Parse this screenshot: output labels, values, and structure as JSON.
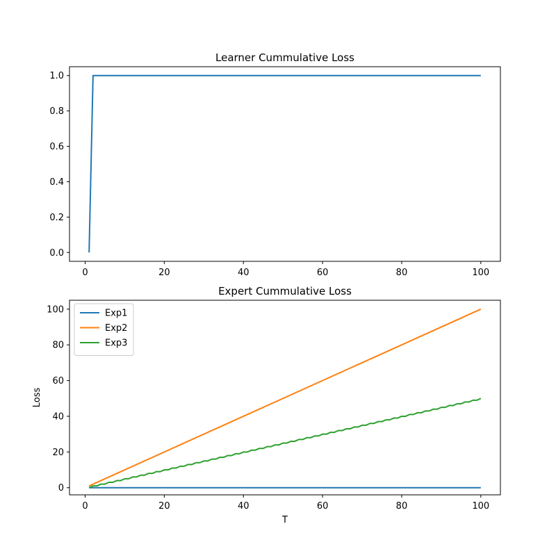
{
  "chart_data": [
    {
      "type": "line",
      "title": "Learner Cummulative Loss",
      "xlabel": "",
      "ylabel": "",
      "xlim": [
        -3.95,
        104.95
      ],
      "ylim": [
        -0.05,
        1.05
      ],
      "xticks": [
        0,
        20,
        40,
        60,
        80,
        100
      ],
      "yticks": [
        0.0,
        0.2,
        0.4,
        0.6,
        0.8,
        1.0
      ],
      "xtick_labels": [
        "0",
        "20",
        "40",
        "60",
        "80",
        "100"
      ],
      "ytick_labels": [
        "0.0",
        "0.2",
        "0.4",
        "0.6",
        "0.8",
        "1.0"
      ],
      "grid": false,
      "legend": null,
      "series": [
        {
          "color": "#1f77b4",
          "x": [
            1,
            2,
            100
          ],
          "y": [
            0,
            1,
            1
          ]
        }
      ]
    },
    {
      "type": "line",
      "title": "Expert Cummulative Loss",
      "xlabel": "T",
      "ylabel": "Loss",
      "xlim": [
        -3.95,
        104.95
      ],
      "ylim": [
        -4.0,
        105.0
      ],
      "xticks": [
        0,
        20,
        40,
        60,
        80,
        100
      ],
      "yticks": [
        0,
        20,
        40,
        60,
        80,
        100
      ],
      "xtick_labels": [
        "0",
        "20",
        "40",
        "60",
        "80",
        "100"
      ],
      "ytick_labels": [
        "0",
        "20",
        "40",
        "60",
        "80",
        "100"
      ],
      "grid": false,
      "legend": "upper left",
      "series": [
        {
          "name": "Exp1",
          "color": "#1f77b4",
          "x": [
            1,
            100
          ],
          "y": [
            0,
            0
          ]
        },
        {
          "name": "Exp2",
          "color": "#ff7f0e",
          "x": [
            1,
            100
          ],
          "y": [
            1,
            100
          ]
        },
        {
          "name": "Exp3",
          "color": "#2ca02c",
          "x": [
            1,
            2,
            3,
            4,
            5,
            6,
            7,
            8,
            9,
            10,
            11,
            12,
            13,
            14,
            15,
            16,
            17,
            18,
            19,
            20,
            21,
            22,
            23,
            24,
            25,
            26,
            27,
            28,
            29,
            30,
            31,
            32,
            33,
            34,
            35,
            36,
            37,
            38,
            39,
            40,
            41,
            42,
            43,
            44,
            45,
            46,
            47,
            48,
            49,
            50,
            51,
            52,
            53,
            54,
            55,
            56,
            57,
            58,
            59,
            60,
            61,
            62,
            63,
            64,
            65,
            66,
            67,
            68,
            69,
            70,
            71,
            72,
            73,
            74,
            75,
            76,
            77,
            78,
            79,
            80,
            81,
            82,
            83,
            84,
            85,
            86,
            87,
            88,
            89,
            90,
            91,
            92,
            93,
            94,
            95,
            96,
            97,
            98,
            99,
            100
          ],
          "y": [
            0,
            1,
            1,
            2,
            2,
            3,
            3,
            4,
            4,
            5,
            5,
            6,
            6,
            7,
            7,
            8,
            8,
            9,
            9,
            10,
            10,
            11,
            11,
            12,
            12,
            13,
            13,
            14,
            14,
            15,
            15,
            16,
            16,
            17,
            17,
            18,
            18,
            19,
            19,
            20,
            20,
            21,
            21,
            22,
            22,
            23,
            23,
            24,
            24,
            25,
            25,
            26,
            26,
            27,
            27,
            28,
            28,
            29,
            29,
            30,
            30,
            31,
            31,
            32,
            32,
            33,
            33,
            34,
            34,
            35,
            35,
            36,
            36,
            37,
            37,
            38,
            38,
            39,
            39,
            40,
            40,
            41,
            41,
            42,
            42,
            43,
            43,
            44,
            44,
            45,
            45,
            46,
            46,
            47,
            47,
            48,
            48,
            49,
            49,
            50
          ]
        }
      ]
    }
  ]
}
